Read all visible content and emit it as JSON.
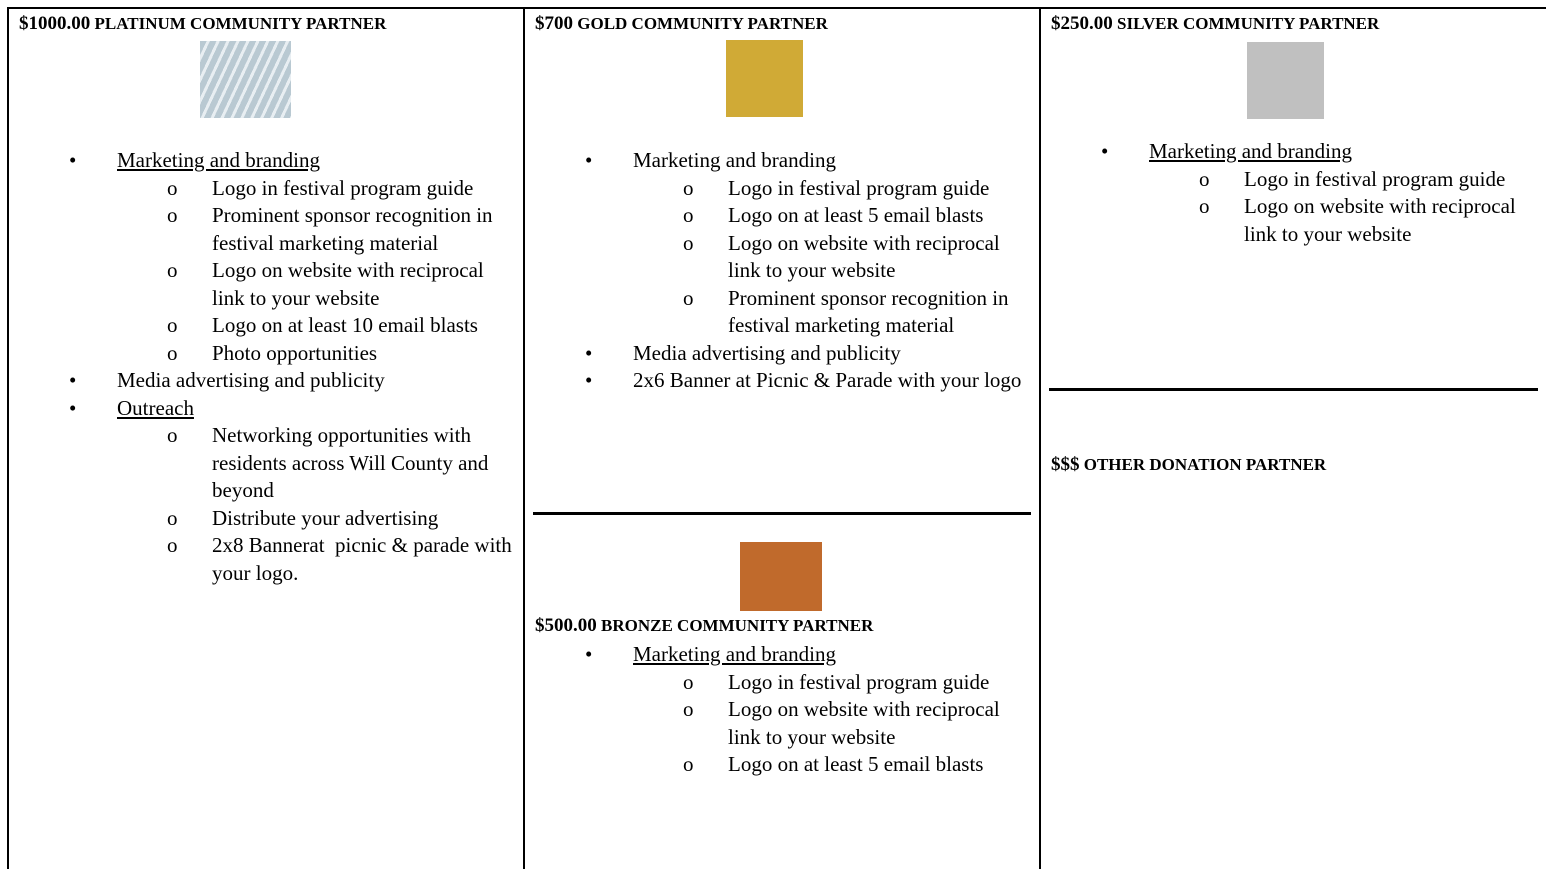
{
  "columns": [
    {
      "sections": [
        {
          "price": "$1000.00",
          "title": "PLATINUM COMMUNITY PARTNER",
          "image_color": "#b9c9d2",
          "items": [
            {
              "text": "Marketing and branding",
              "underlined": true,
              "subitems": [
                "Logo in festival program guide",
                "Prominent sponsor recognition in festival marketing material",
                "Logo on website with reciprocal link to your website",
                "Logo on at least 10 email blasts",
                "Photo opportunities"
              ]
            },
            {
              "text": "Media advertising and publicity",
              "subitems": []
            },
            {
              "text": "Outreach",
              "underlined": true,
              "subitems": [
                "Networking opportunities with residents across Will County and beyond",
                "Distribute your advertising",
                "2x8 Bannerat  picnic & parade with your logo."
              ]
            }
          ]
        }
      ]
    },
    {
      "sections": [
        {
          "price": "$700",
          "title": "GOLD COMMUNITY PARTNER",
          "image_color": "#d0aa36",
          "items": [
            {
              "text": "Marketing and branding",
              "subitems": [
                "Logo in festival program guide",
                "Logo on at least 5 email blasts",
                "Logo on website with reciprocal link to your website",
                "Prominent sponsor recognition in festival marketing material"
              ]
            },
            {
              "text": "Media advertising and publicity",
              "subitems": []
            },
            {
              "text": "2x6 Banner at Picnic & Parade with your logo",
              "subitems": []
            }
          ]
        },
        {
          "price": "$500.00",
          "title": "BRONZE COMMUNITY PARTNER",
          "image_color": "#c06a2c",
          "items": [
            {
              "text": "Marketing and branding",
              "underlined": true,
              "subitems": [
                "Logo in festival program guide",
                "Logo on website with reciprocal link to your website",
                "Logo on at least 5 email blasts"
              ]
            }
          ]
        }
      ]
    },
    {
      "sections": [
        {
          "price": "$250.00",
          "title": "SILVER COMMUNITY PARTNER",
          "image_color": "#c0c0c0",
          "items": [
            {
              "text": "Marketing and branding",
              "underlined": true,
              "subitems": [
                "Logo in festival program guide",
                "Logo on website with reciprocal link to your website"
              ]
            }
          ]
        },
        {
          "price": "$$$",
          "title": "OTHER DONATION PARTNER",
          "items": []
        }
      ]
    }
  ]
}
